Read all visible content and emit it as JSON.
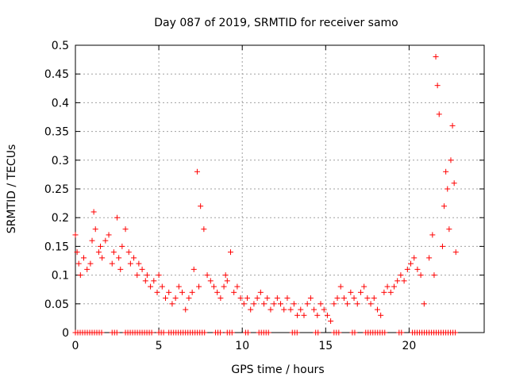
{
  "chart_data": {
    "type": "scatter",
    "title": "Day 087 of 2019, SRMTID for receiver samo",
    "xlabel": "GPS time / hours",
    "ylabel": "SRMTID / TECUs",
    "xlim": [
      0,
      24.5
    ],
    "ylim": [
      0,
      0.5
    ],
    "grid": true,
    "marker": "+",
    "color": "#ff0000",
    "x_ticks": [
      0,
      5,
      10,
      15,
      20
    ],
    "x_tick_labels": [
      "0",
      "5",
      "10",
      "15",
      "20"
    ],
    "y_ticks": [
      0,
      0.05,
      0.1,
      0.15,
      0.2,
      0.25,
      0.3,
      0.35,
      0.4,
      0.45,
      0.5
    ],
    "y_tick_labels": [
      "0",
      "0.05",
      "0.1",
      "0.15",
      "0.2",
      "0.25",
      "0.3",
      "0.35",
      "0.4",
      "0.45",
      "0.5"
    ],
    "series": [
      {
        "name": "samo",
        "x": [
          0.0,
          0.1,
          0.2,
          0.3,
          0.5,
          0.7,
          0.9,
          1.0,
          1.1,
          1.2,
          1.4,
          1.5,
          1.6,
          1.8,
          2.0,
          2.2,
          2.3,
          2.5,
          2.6,
          2.7,
          2.8,
          3.0,
          3.2,
          3.3,
          3.5,
          3.7,
          3.8,
          4.0,
          4.2,
          4.3,
          4.5,
          4.7,
          4.9,
          5.0,
          5.2,
          5.4,
          5.6,
          5.8,
          6.0,
          6.2,
          6.4,
          6.6,
          6.8,
          7.0,
          7.1,
          7.3,
          7.4,
          7.5,
          7.7,
          7.9,
          8.1,
          8.3,
          8.5,
          8.7,
          8.9,
          9.0,
          9.1,
          9.3,
          9.5,
          9.7,
          9.9,
          10.1,
          10.3,
          10.5,
          10.7,
          10.9,
          11.1,
          11.3,
          11.5,
          11.7,
          11.9,
          12.1,
          12.3,
          12.5,
          12.7,
          12.9,
          13.1,
          13.3,
          13.5,
          13.7,
          13.9,
          14.1,
          14.3,
          14.5,
          14.7,
          14.9,
          15.1,
          15.3,
          15.5,
          15.7,
          15.9,
          16.1,
          16.3,
          16.5,
          16.7,
          16.9,
          17.1,
          17.3,
          17.5,
          17.7,
          17.9,
          18.1,
          18.3,
          18.5,
          18.7,
          18.9,
          19.1,
          19.3,
          19.5,
          19.7,
          19.9,
          20.1,
          20.3,
          20.5,
          20.7,
          20.9,
          21.2,
          21.4,
          21.5,
          21.6,
          21.7,
          21.8,
          22.0,
          22.1,
          22.2,
          22.3,
          22.4,
          22.5,
          22.6,
          22.7,
          22.8
        ],
        "y": [
          0.17,
          0.14,
          0.12,
          0.1,
          0.13,
          0.11,
          0.12,
          0.16,
          0.21,
          0.18,
          0.14,
          0.15,
          0.13,
          0.16,
          0.17,
          0.12,
          0.14,
          0.2,
          0.13,
          0.11,
          0.15,
          0.18,
          0.14,
          0.12,
          0.13,
          0.1,
          0.12,
          0.11,
          0.09,
          0.1,
          0.08,
          0.09,
          0.07,
          0.1,
          0.08,
          0.06,
          0.07,
          0.05,
          0.06,
          0.08,
          0.07,
          0.04,
          0.06,
          0.07,
          0.11,
          0.28,
          0.08,
          0.22,
          0.18,
          0.1,
          0.09,
          0.08,
          0.07,
          0.06,
          0.08,
          0.1,
          0.09,
          0.14,
          0.07,
          0.08,
          0.06,
          0.05,
          0.06,
          0.04,
          0.05,
          0.06,
          0.07,
          0.05,
          0.06,
          0.04,
          0.05,
          0.06,
          0.05,
          0.04,
          0.06,
          0.04,
          0.05,
          0.03,
          0.04,
          0.03,
          0.05,
          0.06,
          0.04,
          0.03,
          0.05,
          0.04,
          0.03,
          0.02,
          0.05,
          0.06,
          0.08,
          0.06,
          0.05,
          0.07,
          0.06,
          0.05,
          0.07,
          0.08,
          0.06,
          0.05,
          0.06,
          0.04,
          0.03,
          0.07,
          0.08,
          0.07,
          0.08,
          0.09,
          0.1,
          0.09,
          0.11,
          0.12,
          0.13,
          0.11,
          0.1,
          0.05,
          0.13,
          0.17,
          0.1,
          0.48,
          0.43,
          0.38,
          0.15,
          0.22,
          0.28,
          0.25,
          0.18,
          0.3,
          0.36,
          0.26,
          0.14
        ]
      }
    ],
    "zero_floor_ranges": [
      [
        0.0,
        1.7
      ],
      [
        2.2,
        2.6
      ],
      [
        3.0,
        4.6
      ],
      [
        5.0,
        5.3
      ],
      [
        5.6,
        7.8
      ],
      [
        8.4,
        8.8
      ],
      [
        9.1,
        9.4
      ],
      [
        10.2,
        10.4
      ],
      [
        11.0,
        11.6
      ],
      [
        13.0,
        13.4
      ],
      [
        14.4,
        14.6
      ],
      [
        15.5,
        15.9
      ],
      [
        16.6,
        16.8
      ],
      [
        17.4,
        18.6
      ],
      [
        19.4,
        19.6
      ],
      [
        20.2,
        22.8
      ]
    ]
  }
}
